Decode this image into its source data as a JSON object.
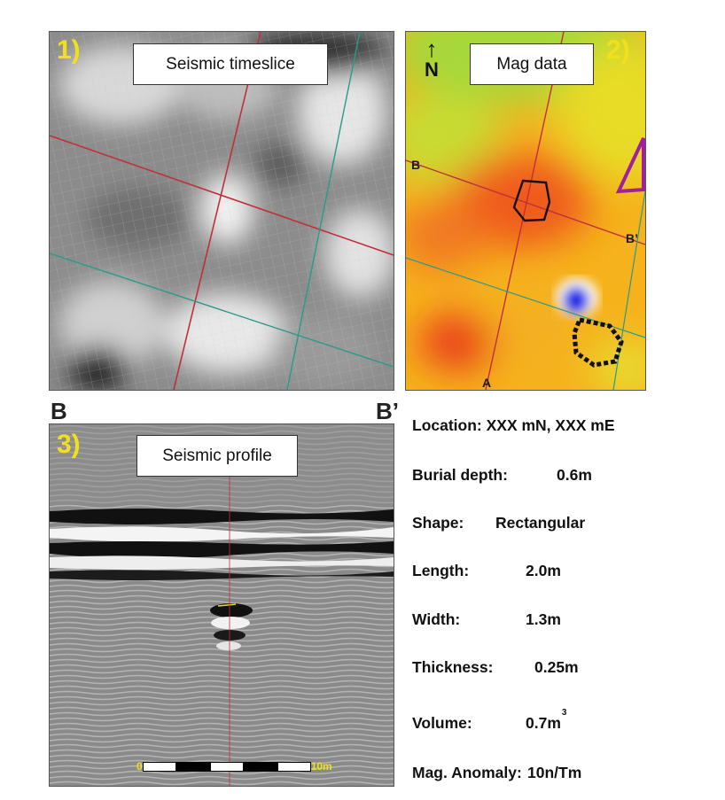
{
  "panel1": {
    "number": "1)",
    "title": "Seismic timeslice"
  },
  "panel2": {
    "number": "2)",
    "title": "Mag data",
    "north": "N",
    "labels": {
      "b": "B",
      "b_prime": "B’",
      "a": "A"
    }
  },
  "panel3": {
    "number": "3)",
    "title": "Seismic profile",
    "scale_start": "0",
    "scale_end": "10m"
  },
  "edge_labels": {
    "b": "B",
    "b_prime": "B’"
  },
  "info": {
    "location": "Location: XXX mN, XXX mE",
    "burial_depth_label": "Burial depth:",
    "burial_depth_value": "0.6m",
    "shape_label": "Shape:",
    "shape_value": "Rectangular",
    "length_label": "Length:",
    "length_value": "2.0m",
    "width_label": "Width:",
    "width_value": "1.3m",
    "thickness_label": "Thickness:",
    "thickness_value": "0.25m",
    "volume_label": "Volume:",
    "volume_value": "0.7m",
    "volume_exp": "3",
    "mag_label": "Mag. Anomaly:",
    "mag_value": "10n/Tm"
  },
  "colors": {
    "panel_number": "#f2e01c",
    "grid_red": "#c0303a",
    "grid_teal": "#2a9a8a"
  }
}
